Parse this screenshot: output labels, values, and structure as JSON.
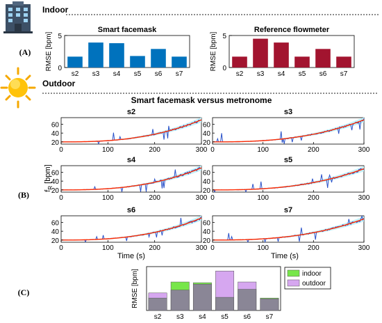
{
  "headers": {
    "indoor": "Indoor",
    "outdoor": "Outdoor"
  },
  "section_labels": {
    "a": "(A)",
    "b": "(B)",
    "c": "(C)"
  },
  "icons": [
    "building-icon",
    "sun-icon"
  ],
  "colors": {
    "facemask": "#0072BD",
    "flowmeter": "#A2142F",
    "metronome": "#ff2a00",
    "signal": "#2850c8",
    "shade": "#bfeff8",
    "indoor": "#77e64a",
    "outdoor": "#d6a7f0",
    "overlap": "#8a8696"
  },
  "chart_data": [
    {
      "id": "A1",
      "type": "bar",
      "title": "Smart facemask",
      "ylabel": "RMSE [bpm]",
      "categories": [
        "s2",
        "s3",
        "s4",
        "s5",
        "s6",
        "s7"
      ],
      "values": [
        1.7,
        3.9,
        3.8,
        1.8,
        2.9,
        1.7
      ],
      "ylim": [
        0,
        5
      ],
      "yticks": [
        "0",
        "5"
      ],
      "color": "#0072BD"
    },
    {
      "id": "A2",
      "type": "bar",
      "title": "Reference flowmeter",
      "ylabel": "RMSE [bpm]",
      "categories": [
        "s2",
        "s3",
        "s4",
        "s5",
        "s6",
        "s7"
      ],
      "values": [
        1.7,
        4.5,
        3.9,
        1.7,
        2.9,
        1.7
      ],
      "ylim": [
        0,
        5
      ],
      "yticks": [
        "0",
        "5"
      ],
      "color": "#A2142F"
    },
    {
      "id": "B",
      "type": "line",
      "title": "Smart facemask versus metronome",
      "ylabel": "f_R [bpm]",
      "xlabel": "Time (s)",
      "xlim": [
        0,
        300
      ],
      "xticks": [
        "0",
        "100",
        "200",
        "300"
      ],
      "ylim": [
        15,
        75
      ],
      "yticks": [
        "20",
        "40",
        "60"
      ],
      "panels": [
        {
          "title": "s2",
          "final_rate": 70
        },
        {
          "title": "s3",
          "final_rate": 70
        },
        {
          "title": "s4",
          "final_rate": 70
        },
        {
          "title": "s5",
          "final_rate": 68
        },
        {
          "title": "s6",
          "final_rate": 70
        },
        {
          "title": "s7",
          "final_rate": 68
        }
      ],
      "start_rate": 20
    },
    {
      "id": "C",
      "type": "bar",
      "ylabel": "RMSE [bpm]",
      "categories": [
        "s2",
        "s3",
        "s4",
        "s5",
        "s6",
        "s7"
      ],
      "series": [
        {
          "name": "indoor",
          "values": [
            1.7,
            3.9,
            3.8,
            1.8,
            2.9,
            1.7
          ]
        },
        {
          "name": "outdoor",
          "values": [
            2.4,
            2.8,
            3.6,
            5.4,
            3.9,
            1.6
          ]
        }
      ],
      "ylim": [
        0,
        6
      ],
      "legend": "right"
    }
  ]
}
